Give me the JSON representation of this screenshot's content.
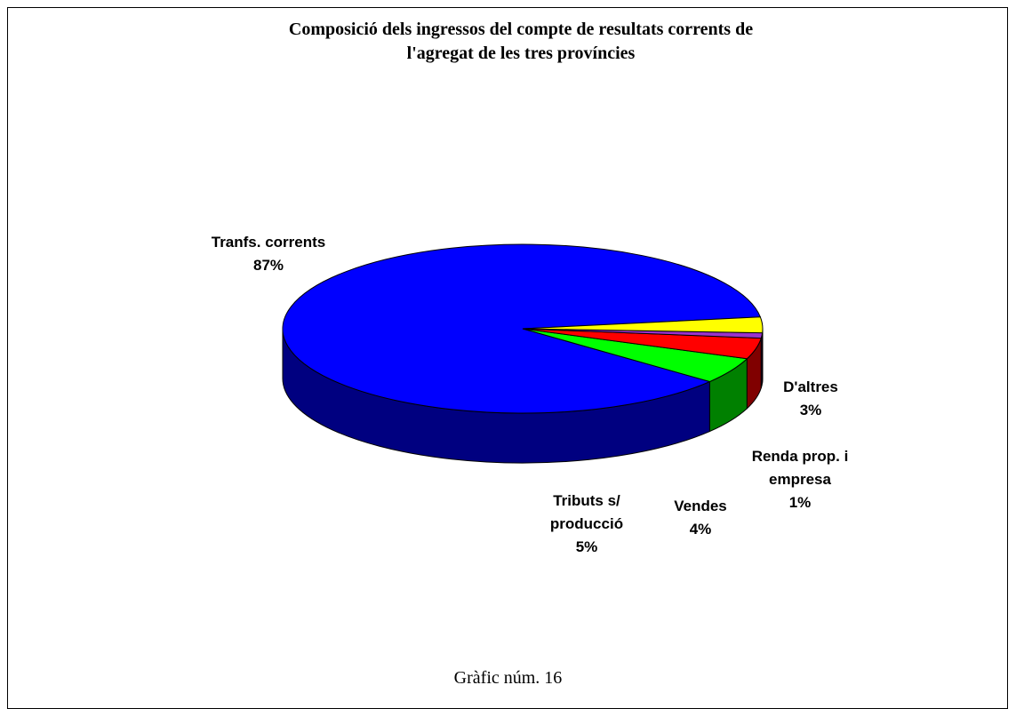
{
  "chart_data": {
    "type": "pie3d",
    "title": "Composició dels ingressos del compte de resultats corrents de l'agregat de les tres províncies",
    "categories": [
      "Tranfs. corrents",
      "Tributs s/ producció",
      "Vendes",
      "Renda prop. i empresa",
      "D'altres"
    ],
    "values": [
      87,
      5,
      4,
      1,
      3
    ],
    "value_labels": [
      "87%",
      "5%",
      "4%",
      "1%",
      "3%"
    ],
    "colors": [
      "#0000ff",
      "#00ff00",
      "#ff0000",
      "#9933cc",
      "#ffff00"
    ],
    "side_colors": [
      "#000080",
      "#008000",
      "#800000",
      "#660066",
      "#808000"
    ],
    "caption": "Gràfic núm. 16"
  }
}
